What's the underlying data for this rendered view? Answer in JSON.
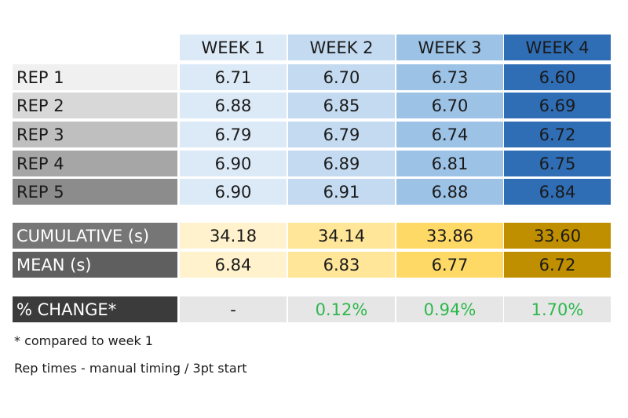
{
  "columns": [
    "WEEK 1",
    "WEEK 2",
    "WEEK 3",
    "WEEK 4"
  ],
  "reps": [
    {
      "label": "REP 1",
      "values": [
        "6.71",
        "6.70",
        "6.73",
        "6.60"
      ]
    },
    {
      "label": "REP 2",
      "values": [
        "6.88",
        "6.85",
        "6.70",
        "6.69"
      ]
    },
    {
      "label": "REP 3",
      "values": [
        "6.79",
        "6.79",
        "6.74",
        "6.72"
      ]
    },
    {
      "label": "REP 4",
      "values": [
        "6.90",
        "6.89",
        "6.81",
        "6.75"
      ]
    },
    {
      "label": "REP 5",
      "values": [
        "6.90",
        "6.91",
        "6.88",
        "6.84"
      ]
    }
  ],
  "summary": [
    {
      "label": "CUMULATIVE (s)",
      "values": [
        "34.18",
        "34.14",
        "33.86",
        "33.60"
      ]
    },
    {
      "label": "MEAN (s)",
      "values": [
        "6.84",
        "6.83",
        "6.77",
        "6.72"
      ]
    }
  ],
  "change": {
    "label": "% CHANGE*",
    "values": [
      "-",
      "0.12%",
      "0.94%",
      "1.70%"
    ]
  },
  "notes": [
    "* compared to week 1",
    "Rep times - manual timing / 3pt start"
  ],
  "colors": {
    "week_header": [
      "#dceaf7",
      "#c3daf0",
      "#9cc2e6",
      "#2f6db5"
    ],
    "week_body": [
      "#dceaf7",
      "#c3daf0",
      "#9cc2e6",
      "#2f6db5"
    ],
    "rep_labels": [
      "#f0f0f0",
      "#d8d8d8",
      "#bfbfbf",
      "#a6a6a6",
      "#8c8c8c"
    ],
    "summary_labels": [
      "#767676",
      "#5f5f5f"
    ],
    "change_label": "#3b3b3b",
    "summary_cells": [
      "#fff2cc",
      "#ffe699",
      "#ffd966",
      "#bf8f00"
    ],
    "change_cells": "#e7e6e6",
    "positive_change": "#2db84d"
  },
  "chart_data": {
    "type": "table",
    "columns": [
      "WEEK 1",
      "WEEK 2",
      "WEEK 3",
      "WEEK 4"
    ],
    "rows": [
      {
        "label": "REP 1",
        "values": [
          6.71,
          6.7,
          6.73,
          6.6
        ]
      },
      {
        "label": "REP 2",
        "values": [
          6.88,
          6.85,
          6.7,
          6.69
        ]
      },
      {
        "label": "REP 3",
        "values": [
          6.79,
          6.79,
          6.74,
          6.72
        ]
      },
      {
        "label": "REP 4",
        "values": [
          6.9,
          6.89,
          6.81,
          6.75
        ]
      },
      {
        "label": "REP 5",
        "values": [
          6.9,
          6.91,
          6.88,
          6.84
        ]
      },
      {
        "label": "CUMULATIVE (s)",
        "values": [
          34.18,
          34.14,
          33.86,
          33.6
        ]
      },
      {
        "label": "MEAN (s)",
        "values": [
          6.84,
          6.83,
          6.77,
          6.72
        ]
      },
      {
        "label": "% CHANGE*",
        "values": [
          "-",
          "0.12%",
          "0.94%",
          "1.70%"
        ]
      }
    ]
  }
}
